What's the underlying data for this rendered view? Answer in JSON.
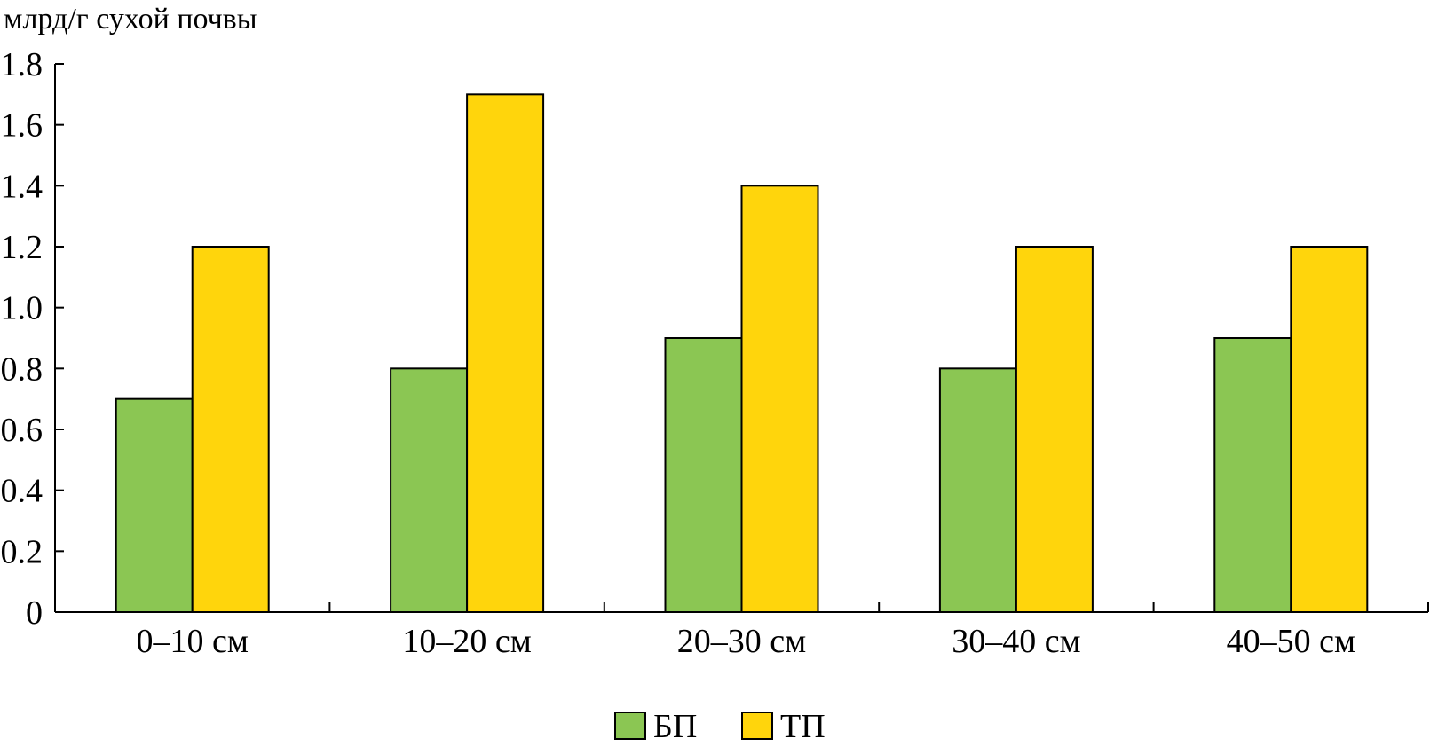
{
  "chart_data": {
    "type": "bar",
    "title": "",
    "ylabel": "млрд/г сухой почвы",
    "xlabel": "",
    "categories": [
      "0–10 см",
      "10–20 см",
      "20–30 см",
      "30–40 см",
      "40–50 см"
    ],
    "series": [
      {
        "name": "БП",
        "color": "#8BC653",
        "values": [
          0.7,
          0.8,
          0.9,
          0.8,
          0.9
        ]
      },
      {
        "name": "ТП",
        "color": "#FFD50C",
        "values": [
          1.2,
          1.7,
          1.4,
          1.2,
          1.2
        ]
      }
    ],
    "ylim": [
      0,
      1.8
    ],
    "yticks": [
      "0",
      "0.2",
      "0.4",
      "0.6",
      "0.8",
      "1.0",
      "1.2",
      "1.4",
      "1.6",
      "1.8"
    ],
    "ytick_values": [
      0,
      0.2,
      0.4,
      0.6,
      0.8,
      1.0,
      1.2,
      1.4,
      1.6,
      1.8
    ],
    "grid": false,
    "legend_position": "bottom-center"
  }
}
